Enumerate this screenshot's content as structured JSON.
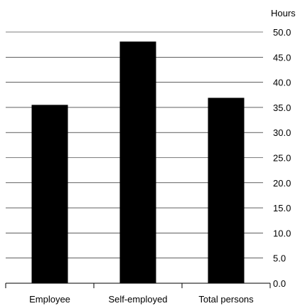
{
  "chart_data": {
    "type": "bar",
    "categories": [
      "Employee",
      "Self-employed",
      "Total persons"
    ],
    "values": [
      35.5,
      48.1,
      36.9
    ],
    "ylabel": "Hours",
    "ylim": [
      0,
      50
    ],
    "yticks": [
      "0.0",
      "5.0",
      "10.0",
      "15.0",
      "20.0",
      "25.0",
      "30.0",
      "35.0",
      "40.0",
      "45.0",
      "50.0"
    ],
    "grid": true,
    "legend": "none",
    "colors": {
      "bar": "#000000",
      "grid": "#000000"
    }
  }
}
